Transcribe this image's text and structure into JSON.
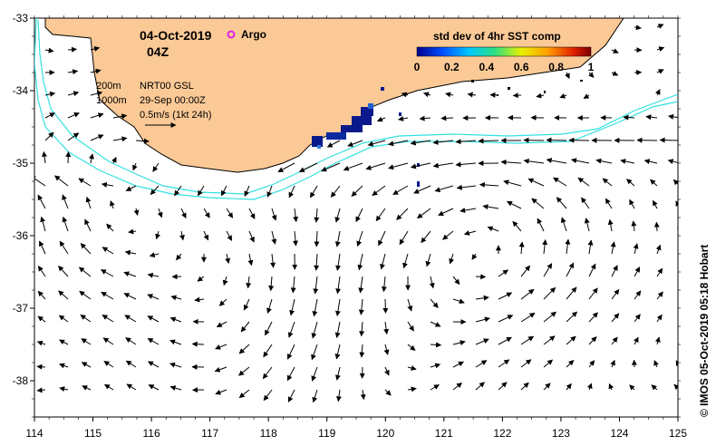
{
  "title": {
    "date": "04-Oct-2019",
    "time": "04Z",
    "argo_label": "Argo"
  },
  "colorbar": {
    "title": "std dev of 4hr SST comp",
    "ticks": [
      "0",
      "0.2",
      "0.4",
      "0.6",
      "0.8",
      "1"
    ],
    "min": 0,
    "max": 1
  },
  "legend": {
    "contour_200": "200m",
    "contour_1000": "1000m",
    "product": "NRT00 GSL",
    "product_date": "29-Sep 00:00Z",
    "scale": "0.5m/s (1kt 24h)"
  },
  "credit": "© IMOS 05-Oct-2019 05:18 Hobart",
  "axes": {
    "x_ticks": [
      "114",
      "115",
      "116",
      "117",
      "118",
      "119",
      "120",
      "121",
      "122",
      "123",
      "124",
      "125"
    ],
    "y_ticks": [
      "-33",
      "-34",
      "-35",
      "-36",
      "-37",
      "-38"
    ],
    "lon_range": [
      114,
      125
    ],
    "lat_range": [
      -38.5,
      -33
    ]
  },
  "colors": {
    "land": "#fbc996",
    "contour": "#33e0e0",
    "argo": "#e020e0",
    "vector": "#000000",
    "sst_high": "#0a1a8c"
  }
}
